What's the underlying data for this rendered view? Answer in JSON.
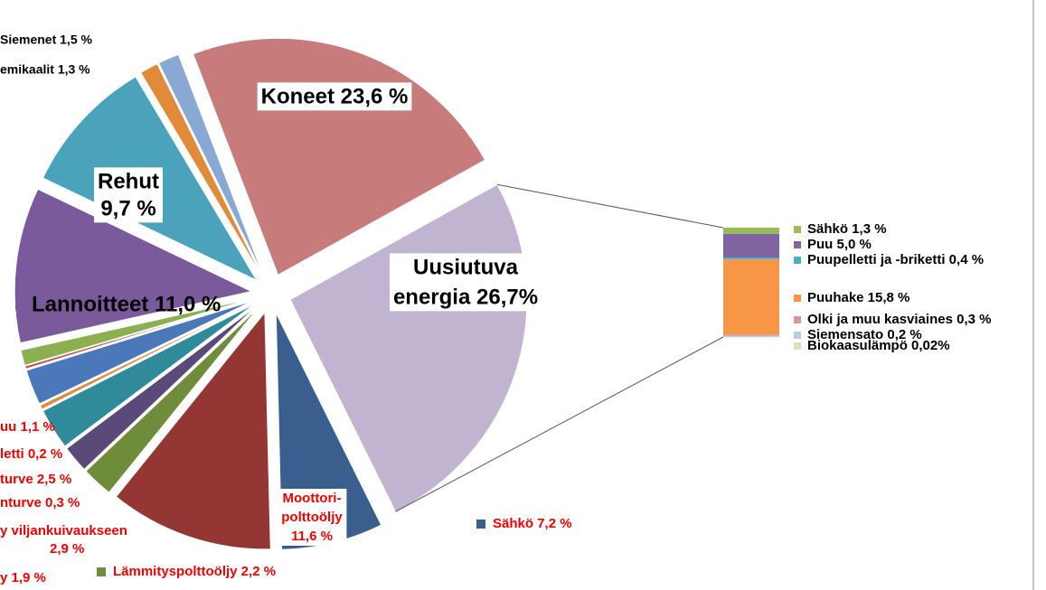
{
  "chart_data": {
    "type": "pie-of-bar",
    "values": [
      23.6,
      26.7,
      7.2,
      11.6,
      2.2,
      1.9,
      2.9,
      0.3,
      2.5,
      0.2,
      1.1,
      11.0,
      9.7,
      1.3,
      1.5
    ],
    "labels": [
      "Koneet 23,6 %",
      [
        "Uusiutuva",
        "energia 26,7%"
      ],
      "Sähkö 7,2 %",
      [
        "Moottori-",
        "polttoöljy",
        "11,6 %"
      ],
      "Lämmityspolttoöljy  2,2 %",
      "y  1,9 %",
      [
        "y viljankuivaukseen",
        "2,9 %"
      ],
      "nturve  0,3 %",
      "turve 2,5 %",
      "letti  0,2 %",
      "uu 1,1 %",
      "Lannoitteet 11,0 %",
      [
        "Rehut",
        "9,7 %"
      ],
      "emikaalit 1,3 %",
      "Siemenet 1,5 %"
    ],
    "colors": [
      "#c77b7b",
      "#c0b4d0",
      "#3a5f8f",
      "#943634",
      "#6e8c3a",
      "#5a4a7a",
      "#2f8a9a",
      "#e08a3a",
      "#4a78b8",
      "#c0504d",
      "#8cb050",
      "#7a5a9a",
      "#4aa3bb",
      "#e08a3a",
      "#8aa8d4"
    ],
    "bar": {
      "values": [
        1.3,
        5.0,
        0.4,
        15.8,
        0.3,
        0.2,
        0.02
      ],
      "labels": [
        "Sähkö 1,3 %",
        "Puu 5,0 %",
        "Puupelletti ja -briketti 0,4 %",
        "Puuhake 15,8 %",
        "Olki ja muu kasviaines 0,3 %",
        "Siemensato 0,2 %",
        "Biokaasulämpö 0,02%"
      ],
      "colors": [
        "#9bbb59",
        "#8064a2",
        "#4bacc6",
        "#f79646",
        "#d99694",
        "#b9cde5",
        "#d7e4bd"
      ]
    }
  }
}
